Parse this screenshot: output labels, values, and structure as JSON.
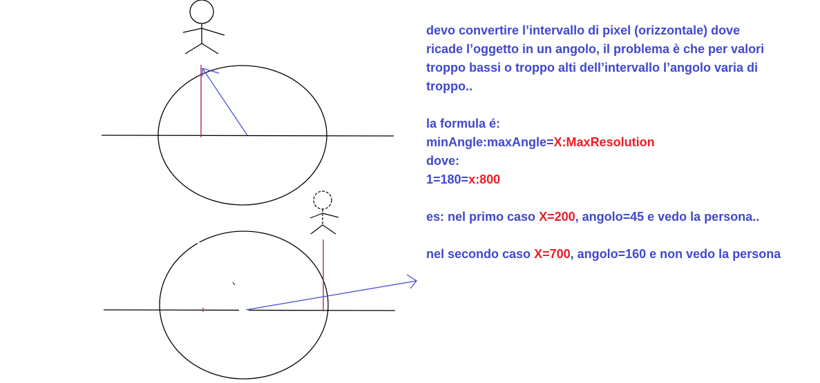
{
  "paragraph_1": {
    "line_1": "devo convertire l’intervallo di pixel (orizzontale) dove",
    "line_2": "ricade l’oggetto in un angolo, il problema è che per valori",
    "line_3": "troppo bassi o troppo alti dell’intervallo l’angolo varia di",
    "line_4": "troppo.."
  },
  "formula_heading": "la formula é:",
  "formula": {
    "left": "minAngle:maxAngle=",
    "right": "X:MaxResolution"
  },
  "where_label": "dove:",
  "substitution": {
    "left": "1=180=",
    "right": "x:800"
  },
  "example_1": {
    "prefix": "es: nel primo caso ",
    "highlight": "X=200",
    "suffix": ", angolo=45 e vedo la persona.."
  },
  "example_2": {
    "prefix": "nel secondo caso ",
    "highlight": "X=700",
    "suffix": ", angolo=160 e non vedo la persona"
  },
  "colors": {
    "text_blue": "#3f48cc",
    "highlight_red": "#ed1c24",
    "ink_black": "#000000",
    "pencil_red": "#b5123a",
    "arrow_blue": "#3f48cc"
  }
}
